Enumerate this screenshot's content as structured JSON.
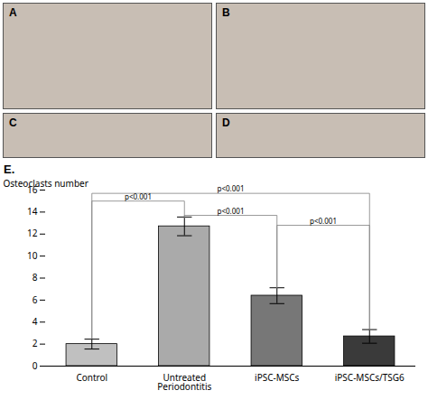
{
  "chart_data": {
    "type": "bar",
    "title": "E.",
    "panels": [
      "A",
      "B",
      "C",
      "D"
    ],
    "categories": [
      "Control",
      "Untreated Periodontitis",
      "iPSC-MSCs",
      "iPSC-MSCs/TSG6"
    ],
    "values": [
      2.0,
      12.7,
      6.4,
      2.7
    ],
    "errors": [
      0.45,
      0.85,
      0.72,
      0.62
    ],
    "colors": [
      "#c0c0c0",
      "#aaaaaa",
      "#777777",
      "#3a3a3a"
    ],
    "ylabel": "Osteoclasts number",
    "ylim": [
      0,
      16
    ],
    "yticks": [
      0,
      2,
      4,
      6,
      8,
      10,
      12,
      14,
      16
    ],
    "annotations": [
      {
        "label": "p<0.001",
        "from": "Control",
        "to": "Untreated Periodontitis",
        "y": 15.0,
        "from_y": 2.5,
        "to_y": 13.5
      },
      {
        "label": "p<0.001",
        "from": "Untreated Periodontitis",
        "to": "iPSC-MSCs",
        "y": 13.7,
        "from_y": 13.5,
        "to_y": 7.1
      },
      {
        "label": "p<0.001",
        "from": "Control",
        "to": "iPSC-MSCs/TSG6",
        "y": 15.7,
        "from_y": 2.5,
        "to_y": 3.3
      },
      {
        "label": "p<0.001",
        "from": "iPSC-MSCs",
        "to": "iPSC-MSCs/TSG6",
        "y": 12.8,
        "from_y": 7.1,
        "to_y": 3.3
      }
    ],
    "grid": false
  }
}
